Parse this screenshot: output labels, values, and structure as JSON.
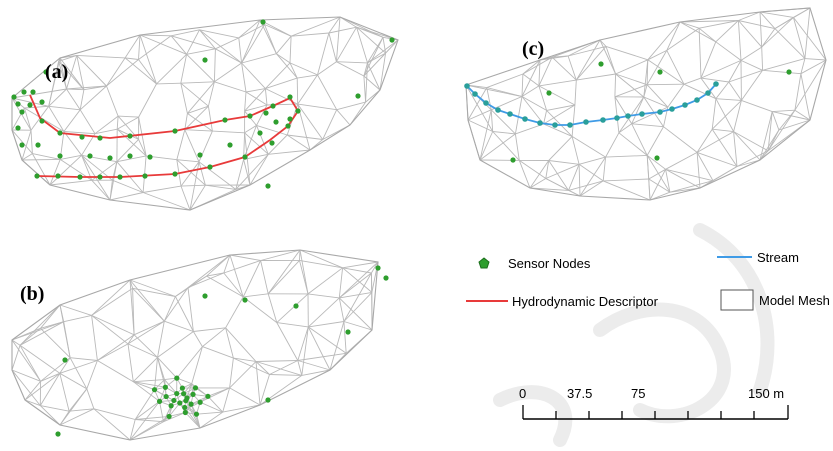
{
  "panels": [
    {
      "id": "a",
      "label": "(a)"
    },
    {
      "id": "b",
      "label": "(b)"
    },
    {
      "id": "c",
      "label": "(c)"
    }
  ],
  "legend": {
    "sensor_nodes": "Sensor Nodes",
    "hydrodynamic_descriptor": "Hydrodynamic Descriptor",
    "stream": "Stream",
    "model_mesh": "Model Mesh"
  },
  "scale_bar": {
    "ticks": [
      "0",
      "37.5",
      "75",
      "150 m"
    ]
  },
  "colors": {
    "sensor_node": "#2e9e2e",
    "hydrodynamic_descriptor": "#e83a3a",
    "stream": "#3f9be6",
    "mesh": "#b9b9b9"
  }
}
